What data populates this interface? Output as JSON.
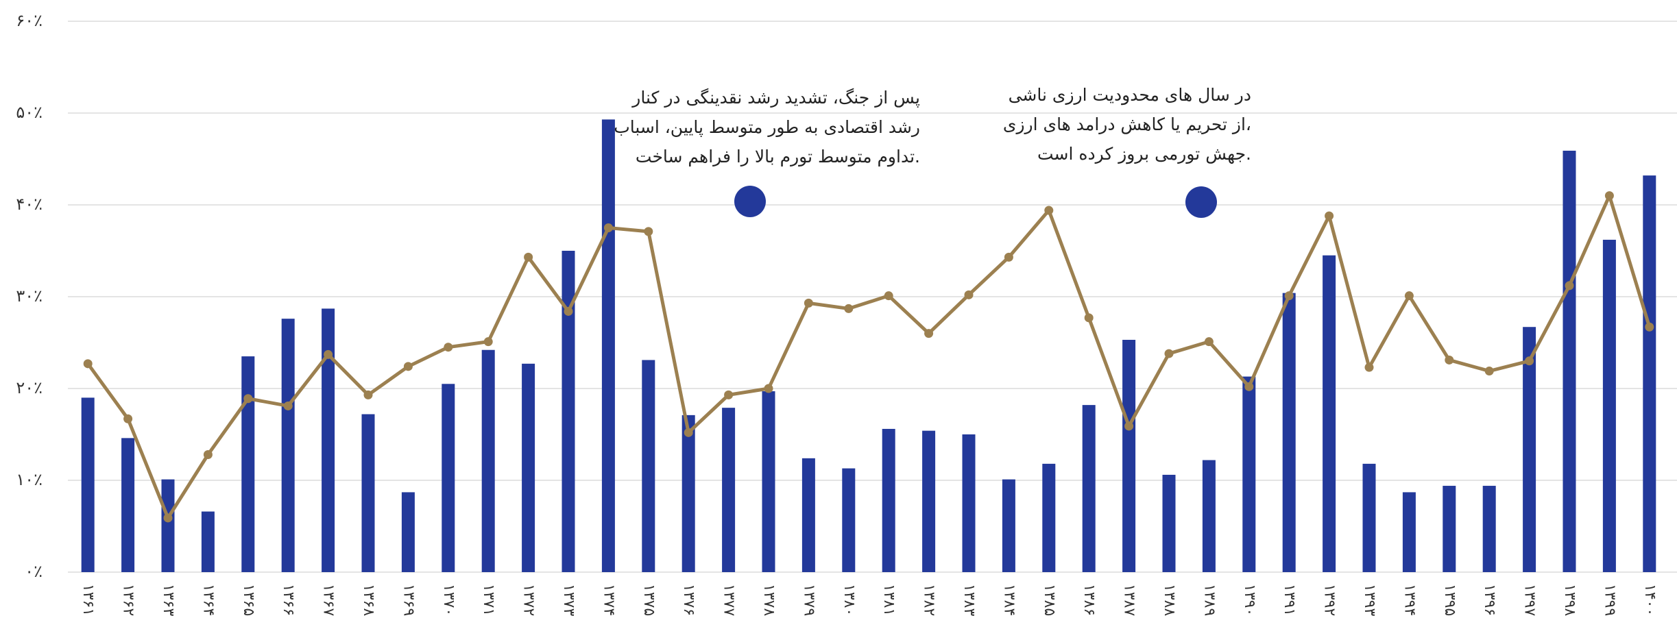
{
  "chart_data": {
    "type": "bar_line",
    "categories": [
      "۱۳۶۱",
      "۱۳۶۲",
      "۱۳۶۳",
      "۱۳۶۴",
      "۱۳۶۵",
      "۱۳۶۶",
      "۱۳۶۷",
      "۱۳۶۸",
      "۱۳۶۹",
      "۱۳۷۰",
      "۱۳۷۱",
      "۱۳۷۲",
      "۱۳۷۳",
      "۱۳۷۴",
      "۱۳۷۵",
      "۱۳۷۶",
      "۱۳۷۷",
      "۱۳۷۸",
      "۱۳۷۹",
      "۱۳۸۰",
      "۱۳۸۱",
      "۱۳۸۲",
      "۱۳۸۳",
      "۱۳۸۴",
      "۱۳۸۵",
      "۱۳۸۶",
      "۱۳۸۷",
      "۱۳۸۸",
      "۱۳۸۹",
      "۱۳۹۰",
      "۱۳۹۱",
      "۱۳۹۲",
      "۱۳۹۳",
      "۱۳۹۴",
      "۱۳۹۵",
      "۱۳۹۶",
      "۱۳۹۷",
      "۱۳۹۸",
      "۱۳۹۹",
      "۱۴۰۰"
    ],
    "series": [
      {
        "type": "bar",
        "color": "#23399a",
        "values": [
          19.0,
          14.6,
          10.1,
          6.6,
          23.5,
          27.6,
          28.7,
          17.2,
          8.7,
          20.5,
          24.2,
          22.7,
          35.0,
          49.3,
          23.1,
          17.1,
          17.9,
          19.7,
          12.4,
          11.3,
          15.6,
          15.4,
          15.0,
          10.1,
          11.8,
          18.2,
          25.3,
          10.6,
          12.2,
          21.3,
          30.4,
          34.5,
          11.8,
          8.7,
          9.4,
          9.4,
          26.7,
          45.9,
          36.2,
          43.2
        ]
      },
      {
        "type": "line",
        "color": "#9c8050",
        "values": [
          22.7,
          16.7,
          5.9,
          12.8,
          18.9,
          18.1,
          23.7,
          19.3,
          22.4,
          24.5,
          25.1,
          34.3,
          28.4,
          37.5,
          37.1,
          15.2,
          19.3,
          20.0,
          29.3,
          28.7,
          30.1,
          26.0,
          30.2,
          34.3,
          39.4,
          27.7,
          15.9,
          23.8,
          25.1,
          20.2,
          30.1,
          38.8,
          22.3,
          30.1,
          23.1,
          21.9,
          23.0,
          31.2,
          41.0,
          26.7
        ]
      }
    ],
    "ylim": [
      0,
      60
    ],
    "yticks": [
      {
        "value": 0,
        "label": "۰٪"
      },
      {
        "value": 10,
        "label": "۱۰٪"
      },
      {
        "value": 20,
        "label": "۲۰٪"
      },
      {
        "value": 30,
        "label": "۳۰٪"
      },
      {
        "value": 40,
        "label": "۴۰٪"
      },
      {
        "value": 50,
        "label": "۵۰٪"
      },
      {
        "value": 60,
        "label": "۶۰٪"
      }
    ],
    "grid": true,
    "annotations": [
      {
        "lines": [
          "پس از جنگ، تشدید رشد نقدینگی در کنار",
          "رشد اقتصادی به طور متوسط پایین، اسباب",
          "تداوم متوسط تورم بالا را فراهم ساخت."
        ]
      },
      {
        "lines": [
          "در سال های محدودیت ارزی ناشی",
          "از تحریم یا کاهش درامد های ارزی،",
          "جهش تورمی بروز کرده است."
        ]
      }
    ]
  }
}
